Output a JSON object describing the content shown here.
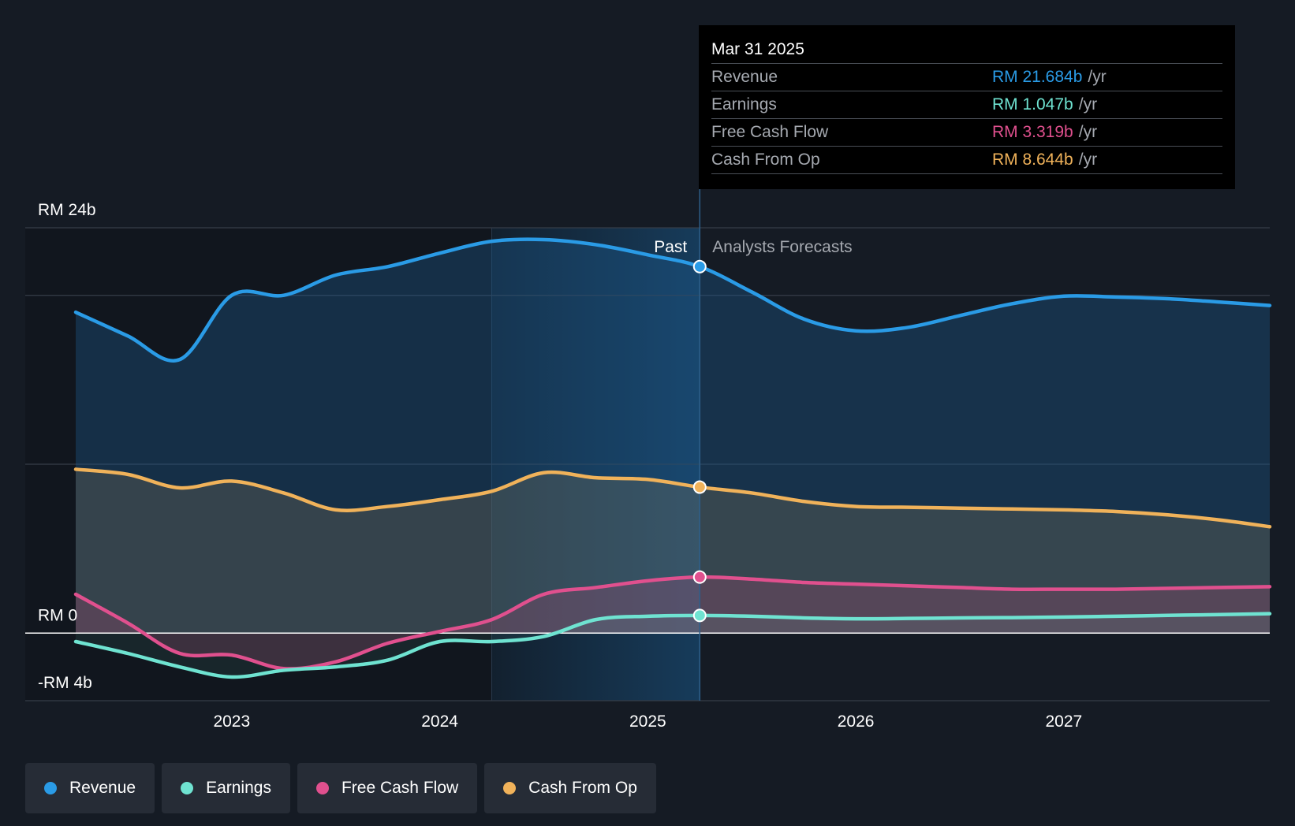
{
  "tooltip": {
    "date": "Mar 31 2025",
    "rows": [
      {
        "label": "Revenue",
        "value": "RM 21.684b",
        "unit": "/yr",
        "color": "#2a9be6"
      },
      {
        "label": "Earnings",
        "value": "RM 1.047b",
        "unit": "/yr",
        "color": "#6fe3d1"
      },
      {
        "label": "Free Cash Flow",
        "value": "RM 3.319b",
        "unit": "/yr",
        "color": "#e0508e"
      },
      {
        "label": "Cash From Op",
        "value": "RM 8.644b",
        "unit": "/yr",
        "color": "#f0b25a"
      }
    ]
  },
  "legend": [
    {
      "label": "Revenue",
      "color": "#2a9be6"
    },
    {
      "label": "Earnings",
      "color": "#6fe3d1"
    },
    {
      "label": "Free Cash Flow",
      "color": "#e0508e"
    },
    {
      "label": "Cash From Op",
      "color": "#f0b25a"
    }
  ],
  "chart_data": {
    "type": "line",
    "title": "",
    "xlabel": "",
    "ylabel": "",
    "ylim": [
      -4,
      24
    ],
    "xlim": [
      2022.25,
      2027.99
    ],
    "y_tick_labels": [
      {
        "value": 24,
        "label": "RM 24b"
      },
      {
        "value": 0,
        "label": "RM 0"
      },
      {
        "value": -4,
        "label": "-RM 4b"
      }
    ],
    "x_ticks": [
      2023,
      2024,
      2025,
      2026,
      2027
    ],
    "x_tick_labels": [
      "2023",
      "2024",
      "2025",
      "2026",
      "2027"
    ],
    "past_label": "Past",
    "forecast_label": "Analysts Forecasts",
    "divider_x": 2025.25,
    "highlight_start_x": 2024.25,
    "series": [
      {
        "name": "Revenue",
        "color": "#2a9be6",
        "points": [
          [
            2022.25,
            19.0
          ],
          [
            2022.5,
            17.6
          ],
          [
            2022.75,
            16.2
          ],
          [
            2023.0,
            20.0
          ],
          [
            2023.25,
            20.0
          ],
          [
            2023.5,
            21.2
          ],
          [
            2023.75,
            21.7
          ],
          [
            2024.0,
            22.5
          ],
          [
            2024.25,
            23.2
          ],
          [
            2024.5,
            23.3
          ],
          [
            2024.75,
            23.0
          ],
          [
            2025.0,
            22.4
          ],
          [
            2025.25,
            21.7
          ],
          [
            2025.5,
            20.2
          ],
          [
            2025.75,
            18.6
          ],
          [
            2026.0,
            17.9
          ],
          [
            2026.25,
            18.1
          ],
          [
            2026.5,
            18.8
          ],
          [
            2026.75,
            19.5
          ],
          [
            2027.0,
            19.95
          ],
          [
            2027.25,
            19.9
          ],
          [
            2027.5,
            19.8
          ],
          [
            2027.75,
            19.6
          ],
          [
            2027.99,
            19.4
          ]
        ]
      },
      {
        "name": "Earnings",
        "color": "#6fe3d1",
        "points": [
          [
            2022.25,
            -0.5
          ],
          [
            2022.5,
            -1.2
          ],
          [
            2022.75,
            -2.0
          ],
          [
            2023.0,
            -2.6
          ],
          [
            2023.25,
            -2.2
          ],
          [
            2023.5,
            -2.0
          ],
          [
            2023.75,
            -1.6
          ],
          [
            2024.0,
            -0.5
          ],
          [
            2024.25,
            -0.5
          ],
          [
            2024.5,
            -0.2
          ],
          [
            2024.75,
            0.8
          ],
          [
            2025.0,
            1.0
          ],
          [
            2025.25,
            1.047
          ],
          [
            2025.5,
            1.0
          ],
          [
            2025.75,
            0.9
          ],
          [
            2026.0,
            0.85
          ],
          [
            2026.25,
            0.87
          ],
          [
            2026.5,
            0.9
          ],
          [
            2026.75,
            0.92
          ],
          [
            2027.0,
            0.95
          ],
          [
            2027.25,
            1.0
          ],
          [
            2027.5,
            1.05
          ],
          [
            2027.75,
            1.1
          ],
          [
            2027.99,
            1.15
          ]
        ]
      },
      {
        "name": "Free Cash Flow",
        "color": "#e0508e",
        "points": [
          [
            2022.25,
            2.3
          ],
          [
            2022.5,
            0.6
          ],
          [
            2022.75,
            -1.2
          ],
          [
            2023.0,
            -1.3
          ],
          [
            2023.25,
            -2.1
          ],
          [
            2023.5,
            -1.7
          ],
          [
            2023.75,
            -0.6
          ],
          [
            2024.0,
            0.1
          ],
          [
            2024.25,
            0.8
          ],
          [
            2024.5,
            2.3
          ],
          [
            2024.75,
            2.7
          ],
          [
            2025.0,
            3.1
          ],
          [
            2025.25,
            3.319
          ],
          [
            2025.5,
            3.2
          ],
          [
            2025.75,
            3.0
          ],
          [
            2026.0,
            2.9
          ],
          [
            2026.25,
            2.8
          ],
          [
            2026.5,
            2.7
          ],
          [
            2026.75,
            2.6
          ],
          [
            2027.0,
            2.6
          ],
          [
            2027.25,
            2.6
          ],
          [
            2027.5,
            2.65
          ],
          [
            2027.75,
            2.7
          ],
          [
            2027.99,
            2.75
          ]
        ]
      },
      {
        "name": "Cash From Op",
        "color": "#f0b25a",
        "points": [
          [
            2022.25,
            9.7
          ],
          [
            2022.5,
            9.4
          ],
          [
            2022.75,
            8.6
          ],
          [
            2023.0,
            9.0
          ],
          [
            2023.25,
            8.3
          ],
          [
            2023.5,
            7.3
          ],
          [
            2023.75,
            7.5
          ],
          [
            2024.0,
            7.9
          ],
          [
            2024.25,
            8.4
          ],
          [
            2024.5,
            9.5
          ],
          [
            2024.75,
            9.2
          ],
          [
            2025.0,
            9.1
          ],
          [
            2025.25,
            8.644
          ],
          [
            2025.5,
            8.3
          ],
          [
            2025.75,
            7.8
          ],
          [
            2026.0,
            7.5
          ],
          [
            2026.25,
            7.45
          ],
          [
            2026.5,
            7.4
          ],
          [
            2026.75,
            7.35
          ],
          [
            2027.0,
            7.3
          ],
          [
            2027.25,
            7.2
          ],
          [
            2027.5,
            7.0
          ],
          [
            2027.75,
            6.7
          ],
          [
            2027.99,
            6.3
          ]
        ]
      }
    ]
  }
}
